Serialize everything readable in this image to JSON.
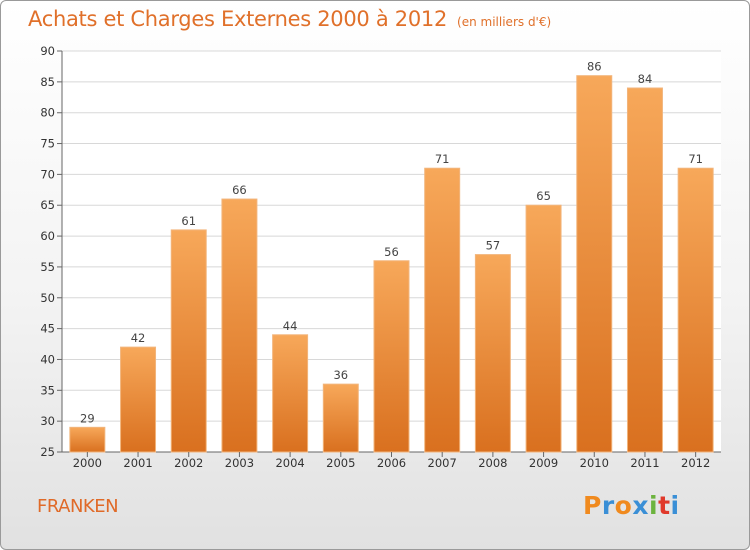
{
  "title": "Achats et Charges Externes 2000 à 2012",
  "unit_label": "(en milliers d'€)",
  "commune": "FRANKEN",
  "brand": {
    "letters": [
      "P",
      "r",
      "o",
      "x",
      "i",
      "t",
      "i"
    ],
    "colors": [
      "#f08a1e",
      "#3a8fd6",
      "#f08a1e",
      "#3a8fd6",
      "#6cb33e",
      "#e0392b",
      "#3a8fd6"
    ]
  },
  "colors": {
    "bar_top": "#f7a85a",
    "bar_bottom": "#d9701f",
    "accent": "#e0702a",
    "grid": "#d8d8d8"
  },
  "chart_data": {
    "type": "bar",
    "title": "Achats et Charges Externes 2000 à 2012",
    "subtitle": "(en milliers d'€)",
    "categories": [
      "2000",
      "2001",
      "2002",
      "2003",
      "2004",
      "2005",
      "2006",
      "2007",
      "2008",
      "2009",
      "2010",
      "2011",
      "2012"
    ],
    "values": [
      29,
      42,
      61,
      66,
      44,
      36,
      56,
      71,
      57,
      65,
      86,
      84,
      71
    ],
    "ylim": [
      25,
      90
    ],
    "yticks": [
      25,
      30,
      35,
      40,
      45,
      50,
      55,
      60,
      65,
      70,
      75,
      80,
      85,
      90
    ],
    "grid": "horizontal",
    "xlabel": "",
    "ylabel": ""
  }
}
